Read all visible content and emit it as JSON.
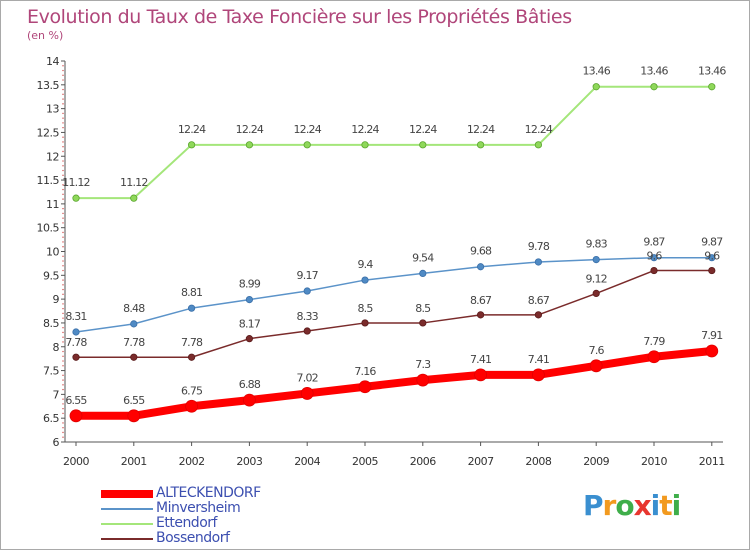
{
  "title": "Evolution du Taux de Taxe Foncière sur les Propriétés Bâties",
  "unit_label": "(en %)",
  "logo": {
    "letters": [
      "P",
      "r",
      "o",
      "x",
      "i",
      "t",
      "i"
    ],
    "colors": [
      "#3a8fd0",
      "#f29a1f",
      "#3fae4a",
      "#e8362f",
      "#3a8fd0",
      "#f29a1f",
      "#3fae4a"
    ]
  },
  "chart_data": {
    "type": "line",
    "title": "Evolution du Taux de Taxe Foncière sur les Propriétés Bâties",
    "ylabel": "(en %)",
    "xlabel": "",
    "x": [
      "2000",
      "2001",
      "2002",
      "2003",
      "2004",
      "2005",
      "2006",
      "2007",
      "2008",
      "2009",
      "2010",
      "2011"
    ],
    "ylim": [
      6,
      14
    ],
    "yticks": [
      "6",
      "6.5",
      "7",
      "7.5",
      "8",
      "8.5",
      "9",
      "9.5",
      "10",
      "10.5",
      "11",
      "11.5",
      "12",
      "12.5",
      "13",
      "13.5",
      "14"
    ],
    "grid": false,
    "legend_position": "bottom-left",
    "series": [
      {
        "name": "ALTECKENDORF",
        "color": "#ff0000",
        "values": [
          6.55,
          6.55,
          6.75,
          6.88,
          7.02,
          7.16,
          7.3,
          7.41,
          7.41,
          7.6,
          7.79,
          7.91
        ],
        "labels": [
          "6.55",
          "6.55",
          "6.75",
          "6.88",
          "7.02",
          "7.16",
          "7.3",
          "7.41",
          "7.41",
          "7.6",
          "7.79",
          "7.91"
        ]
      },
      {
        "name": "Minversheim",
        "color": "#5b93c9",
        "values": [
          8.31,
          8.48,
          8.81,
          8.99,
          9.17,
          9.4,
          9.54,
          9.68,
          9.78,
          9.83,
          9.87,
          9.87
        ],
        "labels": [
          "8.31",
          "8.48",
          "8.81",
          "8.99",
          "9.17",
          "9.4",
          "9.54",
          "9.68",
          "9.78",
          "9.83",
          "9.87",
          "9.87"
        ]
      },
      {
        "name": "Ettendorf",
        "color": "#9be36a",
        "values": [
          11.12,
          11.12,
          12.24,
          12.24,
          12.24,
          12.24,
          12.24,
          12.24,
          12.24,
          13.46,
          13.46,
          13.46
        ],
        "labels": [
          "11.12",
          "11.12",
          "12.24",
          "12.24",
          "12.24",
          "12.24",
          "12.24",
          "12.24",
          "12.24",
          "13.46",
          "13.46",
          "13.46"
        ]
      },
      {
        "name": "Bossendorf",
        "color": "#7a2b2b",
        "values": [
          7.78,
          7.78,
          7.78,
          8.17,
          8.33,
          8.5,
          8.5,
          8.67,
          8.67,
          9.12,
          9.6,
          9.6
        ],
        "labels": [
          "7.78",
          "7.78",
          "7.78",
          "8.17",
          "8.33",
          "8.5",
          "8.5",
          "8.67",
          "8.67",
          "9.12",
          "9.6",
          "9.6"
        ]
      }
    ]
  }
}
